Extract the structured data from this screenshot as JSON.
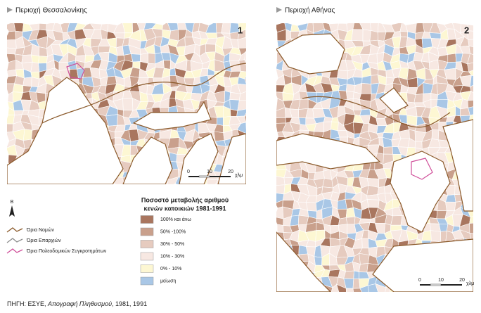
{
  "maps": [
    {
      "title": "Περιοχή Θεσσαλονίκης",
      "number": "1",
      "scale": [
        "0",
        "10",
        "20",
        "χλμ"
      ]
    },
    {
      "title": "Περιοχή Αθήνας",
      "number": "2",
      "scale": [
        "0",
        "10",
        "20",
        "χλμ"
      ]
    }
  ],
  "legend": {
    "north": "Β",
    "boundaries": [
      {
        "label": "Όρια Νομών",
        "color": "#8b5a2b"
      },
      {
        "label": "Όρια Επαρχιών",
        "color": "#8c8c8c"
      },
      {
        "label": "Όρια Πολεοδομικών Συγκροτημάτων",
        "color": "#d0509a"
      }
    ],
    "title": [
      "Ποσοστό μεταβολής αριθμού",
      "κενών κατοικιών 1981-1991"
    ],
    "classes": [
      {
        "label": "100%  και άνω",
        "color": "#a9765f"
      },
      {
        "label": "50% -100%",
        "color": "#c9a08c"
      },
      {
        "label": "30% - 50%",
        "color": "#e6cbbf"
      },
      {
        "label": "10% - 30%",
        "color": "#f7e8e2"
      },
      {
        "label": "0% - 10%",
        "color": "#fdf7d3"
      },
      {
        "label": "μείωση",
        "color": "#a9c7e6"
      }
    ]
  },
  "source": {
    "prefix": "ΠΗΓΗ: ΕΣΥΕ, ",
    "italic": "Απογραφή Πληθυσμού",
    "suffix": ", 1981, 1991"
  }
}
